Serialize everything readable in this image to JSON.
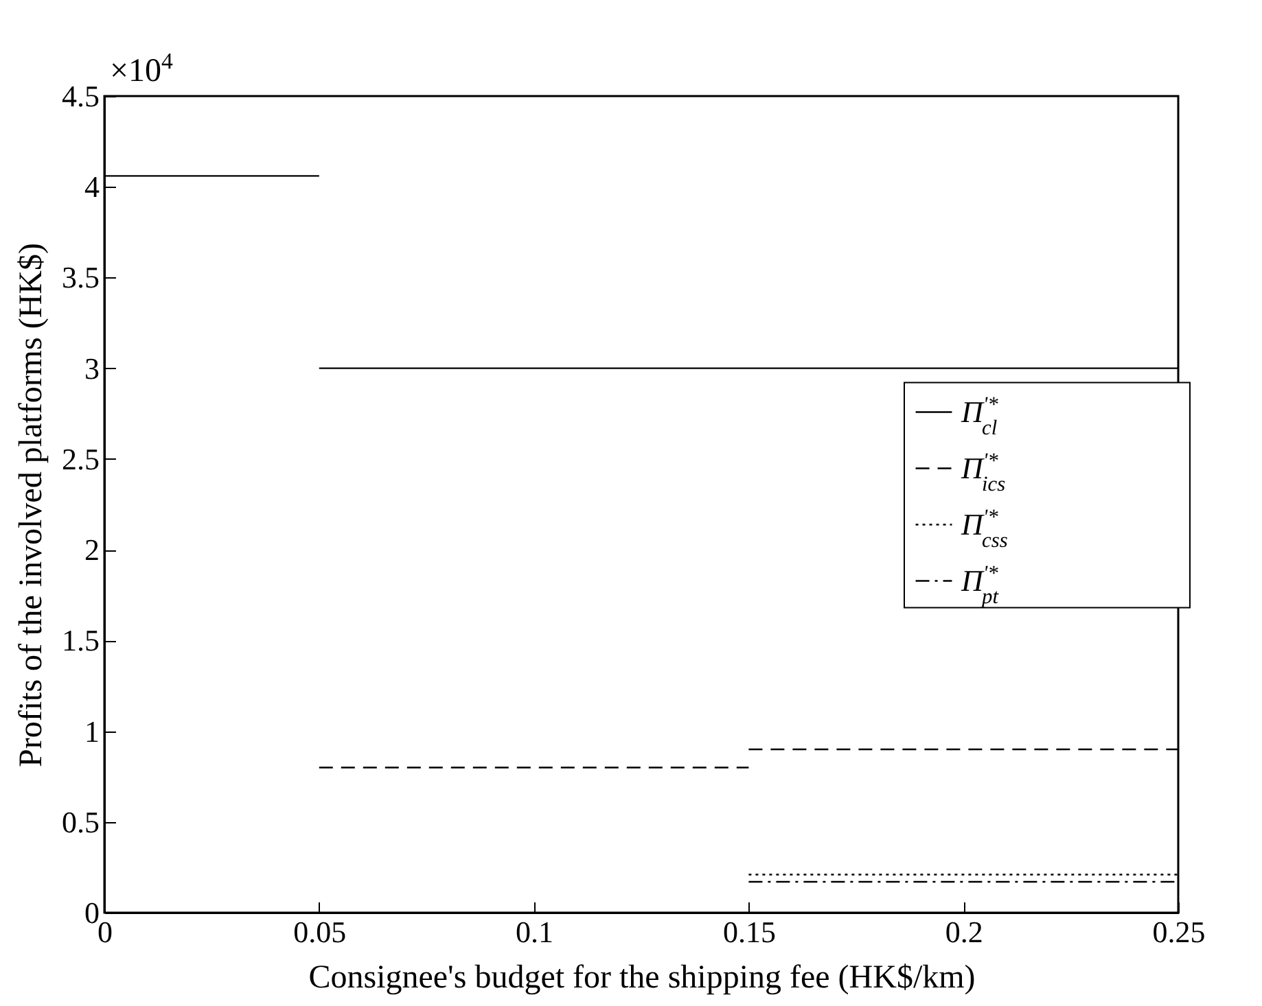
{
  "chart_data": {
    "type": "line",
    "xlabel": "Consignee's budget for the shipping fee (HK$/km)",
    "ylabel": "Profits of the involved platforms (HK$)",
    "annotations": [
      "×10$^{4}$"
    ],
    "series": [
      {
        "name": "Π$^{'*}$$_{cl}$",
        "color": "#000000",
        "line_style": "solid",
        "x": [
          0,
          0.05,
          null,
          0.05,
          0.25
        ],
        "values": [
          4.06,
          4.06,
          null,
          3,
          3
        ]
      },
      {
        "name": "Π$^{'*}$$_{ics}$",
        "color": "#000000",
        "line_style": "dashed",
        "x": [
          0.05,
          0.15,
          null,
          0.15,
          0.25
        ],
        "values": [
          0.8,
          0.8,
          null,
          0.9,
          0.9
        ]
      },
      {
        "name": "Π$^{'*}$$_{css}$",
        "color": "#000000",
        "line_style": "dotted",
        "x": [
          0.15,
          0.25
        ],
        "values": [
          0.21,
          0.21
        ]
      },
      {
        "name": "Π$^{'*}$$_{pt}$",
        "color": "#000000",
        "line_style": "dashdot",
        "x": [
          0.15,
          0.25
        ],
        "values": [
          0.17,
          0.17
        ]
      }
    ],
    "xlim": [
      0,
      0.25
    ],
    "xticks": [
      0,
      0.05,
      0.1,
      0.15,
      0.2,
      0.25
    ],
    "ylim": [
      0,
      4.5
    ],
    "yticks": [
      0,
      0.5,
      1,
      1.5,
      2,
      2.5,
      3,
      3.5,
      4,
      4.5
    ],
    "grid": false,
    "legend": "right"
  }
}
